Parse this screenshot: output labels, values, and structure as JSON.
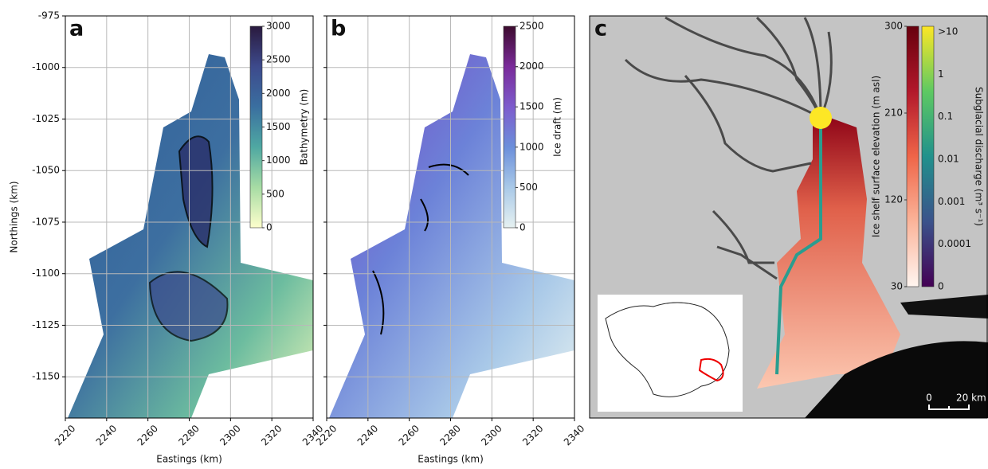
{
  "chart_data": [
    {
      "type": "map",
      "panel": "a",
      "xlabel": "Eastings (km)",
      "ylabel": "Northings (km)",
      "xlim": [
        2220,
        2340
      ],
      "ylim": [
        -1170,
        -975
      ],
      "xticks": [
        2220,
        2240,
        2260,
        2280,
        2300,
        2320,
        2340
      ],
      "yticks": [
        -975,
        -1000,
        -1025,
        -1050,
        -1075,
        -1100,
        -1125,
        -1150
      ],
      "grid": true,
      "colorbar": {
        "label": "Bathymetry (m)",
        "lim": [
          0,
          3000
        ],
        "ticks": [
          0,
          500,
          1000,
          1500,
          2000,
          2500,
          3000
        ],
        "colormap": [
          "#fdfecc",
          "#a7dca4",
          "#4fa8a2",
          "#3a6fa0",
          "#3d4a8c",
          "#2a1a3e"
        ]
      }
    },
    {
      "type": "map",
      "panel": "b",
      "xlabel": "Eastings (km)",
      "xlim": [
        2220,
        2340
      ],
      "ylim": [
        -1170,
        -975
      ],
      "xticks": [
        2220,
        2240,
        2260,
        2280,
        2300,
        2320,
        2340
      ],
      "yticks": [
        -975,
        -1000,
        -1025,
        -1050,
        -1075,
        -1100,
        -1125,
        -1150
      ],
      "grid": true,
      "colorbar": {
        "label": "Ice draft (m)",
        "lim": [
          0,
          2500
        ],
        "ticks": [
          0,
          500,
          1000,
          1500,
          2000,
          2500
        ],
        "colormap": [
          "#e6f1f1",
          "#a9c9e8",
          "#6b8fdb",
          "#7d5ccd",
          "#7a2a9a",
          "#3d0b2e"
        ]
      }
    },
    {
      "type": "image-map",
      "panel": "c",
      "colorbars": [
        {
          "label": "Ice shelf surface elevation (m asl)",
          "lim": [
            30,
            300
          ],
          "ticks": [
            30,
            120,
            210,
            300
          ],
          "colormap": [
            "#fff5f0",
            "#fbb49a",
            "#ef6548",
            "#b2182b",
            "#67000d"
          ]
        },
        {
          "label": "Subglacial discharge (m³ s⁻¹)",
          "tick_labels": [
            ">10",
            "1",
            "0.1",
            "0.01",
            "0.001",
            "0.0001",
            "0"
          ],
          "colormap": [
            "#440154",
            "#3b528b",
            "#21918c",
            "#5ec962",
            "#fde725"
          ]
        }
      ],
      "scalebar": [
        "0",
        "20 km"
      ]
    }
  ]
}
